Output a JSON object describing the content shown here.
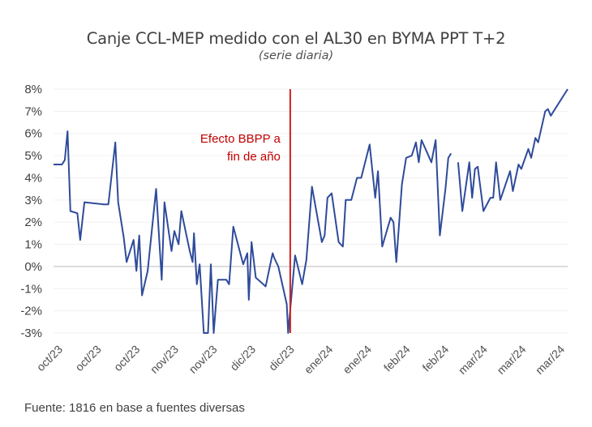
{
  "chart_data": {
    "type": "line",
    "title": "Canje CCL-MEP medido con el AL30 en BYMA PPT T+2",
    "subtitle": "(serie diaria)",
    "xlabel": "",
    "ylabel": "",
    "ylim": [
      -3,
      8
    ],
    "yticks": [
      8,
      7,
      6,
      5,
      4,
      3,
      2,
      1,
      0,
      -1,
      -2,
      -3
    ],
    "ytick_labels": [
      "8%",
      "7%",
      "6%",
      "5%",
      "4%",
      "3%",
      "2%",
      "1%",
      "0%",
      "-1%",
      "-2%",
      "-3%"
    ],
    "xtick_labels": [
      "oct/23",
      "oct/23",
      "oct/23",
      "nov/23",
      "nov/23",
      "dic/23",
      "dic/23",
      "ene/24",
      "ene/24",
      "feb/24",
      "feb/24",
      "mar/24",
      "mar/24",
      "mar/24"
    ],
    "grid": true,
    "legend": "none",
    "series": [
      {
        "name": "Canje CCL-MEP (%)",
        "color": "#2f4b9a",
        "segments": [
          [
            [
              0,
              4.6
            ],
            [
              0.6,
              4.6
            ],
            [
              0.8,
              4.8
            ],
            [
              1.0,
              6.1
            ],
            [
              1.2,
              2.5
            ],
            [
              1.7,
              2.4
            ],
            [
              1.9,
              1.2
            ],
            [
              2.2,
              2.9
            ],
            [
              3.6,
              2.8
            ],
            [
              3.9,
              2.8
            ],
            [
              4.4,
              5.6
            ],
            [
              4.6,
              2.9
            ],
            [
              5.0,
              1.3
            ],
            [
              5.2,
              0.2
            ],
            [
              5.7,
              1.2
            ],
            [
              5.9,
              -0.2
            ],
            [
              6.1,
              1.4
            ],
            [
              6.3,
              -1.3
            ],
            [
              6.7,
              -0.2
            ],
            [
              7.3,
              3.5
            ],
            [
              7.7,
              -0.6
            ],
            [
              7.9,
              2.9
            ],
            [
              8.4,
              0.7
            ],
            [
              8.6,
              1.6
            ],
            [
              8.9,
              1.0
            ],
            [
              9.1,
              2.5
            ],
            [
              9.7,
              0.7
            ],
            [
              9.9,
              0.2
            ],
            [
              10.0,
              1.5
            ],
            [
              10.2,
              -0.8
            ],
            [
              10.4,
              0.1
            ],
            [
              10.7,
              -3.0
            ],
            [
              11.0,
              -3.0
            ],
            [
              11.2,
              0.1
            ],
            [
              11.4,
              -3.0
            ],
            [
              11.7,
              -0.6
            ],
            [
              12.3,
              -0.6
            ],
            [
              12.5,
              -0.8
            ],
            [
              12.8,
              1.8
            ],
            [
              13.5,
              0.1
            ],
            [
              13.8,
              0.6
            ],
            [
              13.9,
              -1.5
            ],
            [
              14.1,
              1.1
            ],
            [
              14.4,
              -0.5
            ],
            [
              15.1,
              -0.9
            ],
            [
              15.2,
              -0.6
            ],
            [
              15.6,
              0.6
            ],
            [
              15.7,
              0.4
            ],
            [
              16.0,
              0.0
            ],
            [
              16.6,
              -1.7
            ],
            [
              16.7,
              -3.0
            ],
            [
              17.2,
              0.5
            ],
            [
              17.7,
              -0.8
            ],
            [
              18.0,
              0.3
            ],
            [
              18.4,
              3.6
            ],
            [
              19.1,
              1.1
            ],
            [
              19.3,
              1.4
            ],
            [
              19.5,
              3.1
            ],
            [
              19.8,
              3.3
            ],
            [
              20.3,
              1.1
            ],
            [
              20.6,
              0.9
            ],
            [
              20.8,
              3.0
            ],
            [
              21.2,
              3.0
            ],
            [
              21.6,
              4.0
            ],
            [
              21.9,
              4.0
            ],
            [
              22.5,
              5.5
            ],
            [
              22.9,
              3.1
            ],
            [
              23.1,
              4.3
            ],
            [
              23.4,
              0.9
            ],
            [
              24.0,
              2.2
            ],
            [
              24.2,
              2.0
            ],
            [
              24.4,
              0.2
            ],
            [
              24.8,
              3.7
            ],
            [
              25.1,
              4.9
            ],
            [
              25.5,
              5.0
            ],
            [
              25.8,
              5.6
            ],
            [
              26.0,
              4.7
            ],
            [
              26.2,
              5.7
            ],
            [
              26.9,
              4.7
            ],
            [
              27.2,
              5.7
            ],
            [
              27.5,
              1.4
            ],
            [
              27.9,
              3.5
            ],
            [
              28.1,
              4.9
            ],
            [
              28.3,
              5.1
            ]
          ],
          [
            [
              28.8,
              4.7
            ],
            [
              29.1,
              2.5
            ],
            [
              29.6,
              4.7
            ],
            [
              29.8,
              3.1
            ],
            [
              30.0,
              4.4
            ],
            [
              30.2,
              4.5
            ],
            [
              30.6,
              2.5
            ],
            [
              31.1,
              3.1
            ],
            [
              31.3,
              3.1
            ],
            [
              31.5,
              4.7
            ],
            [
              31.8,
              3.0
            ],
            [
              32.5,
              4.3
            ],
            [
              32.7,
              3.4
            ],
            [
              33.1,
              4.6
            ],
            [
              33.3,
              4.4
            ],
            [
              33.8,
              5.3
            ],
            [
              34.0,
              4.9
            ],
            [
              34.3,
              5.8
            ],
            [
              34.5,
              5.6
            ],
            [
              35.0,
              7.0
            ],
            [
              35.2,
              7.1
            ],
            [
              35.4,
              6.8
            ],
            [
              36.6,
              8.0
            ]
          ]
        ]
      }
    ],
    "annotations": [
      {
        "type": "vertical-line",
        "x": 16.85,
        "color": "#cc2020",
        "text_lines": [
          "Efecto BBPP a",
          "fin de año"
        ]
      }
    ],
    "x_range": [
      0,
      36.6
    ]
  },
  "footer": {
    "source": "Fuente: 1816 en base a fuentes diversas"
  }
}
